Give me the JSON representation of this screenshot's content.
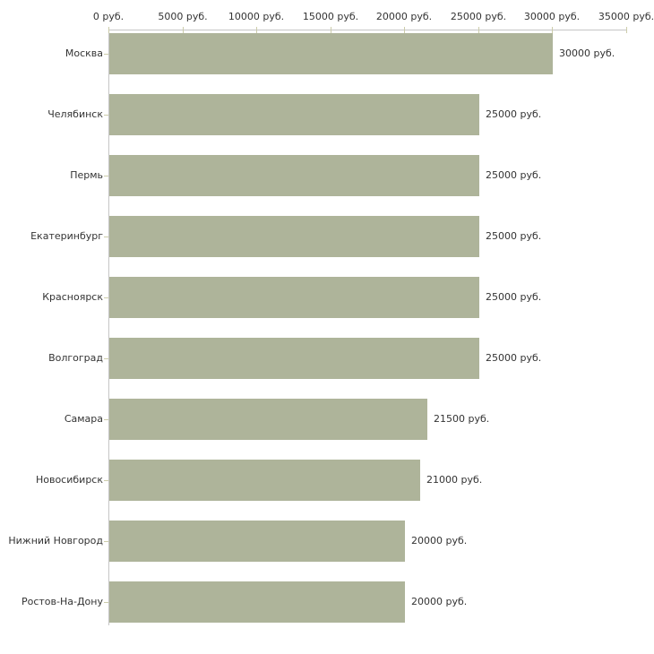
{
  "chart_data": {
    "type": "bar",
    "orientation": "horizontal",
    "title": "",
    "categories": [
      "Москва",
      "Челябинск",
      "Пермь",
      "Екатеринбург",
      "Красноярск",
      "Волгоград",
      "Самара",
      "Новосибирск",
      "Нижний Новгород",
      "Ростов-На-Дону"
    ],
    "values": [
      30000,
      25000,
      25000,
      25000,
      25000,
      25000,
      21500,
      21000,
      20000,
      20000
    ],
    "value_labels": [
      "30000 руб.",
      "25000 руб.",
      "25000 руб.",
      "25000 руб.",
      "25000 руб.",
      "25000 руб.",
      "21500 руб.",
      "21000 руб.",
      "20000 руб.",
      "20000 руб."
    ],
    "x_ticks": [
      0,
      5000,
      10000,
      15000,
      20000,
      25000,
      30000,
      35000
    ],
    "x_tick_labels": [
      "0 руб.",
      "5000 руб.",
      "10000 руб.",
      "15000 руб.",
      "20000 руб.",
      "25000 руб.",
      "30000 руб.",
      "35000 руб."
    ],
    "xlim": [
      0,
      35000
    ],
    "unit": "руб.",
    "axis_position": "top",
    "grid": false,
    "legend": false,
    "colors": {
      "bar": "#aeb49a",
      "axis_line": "#c6c6c6",
      "tick": "#ccccaa",
      "text": "#333333",
      "background": "#ffffff"
    }
  }
}
